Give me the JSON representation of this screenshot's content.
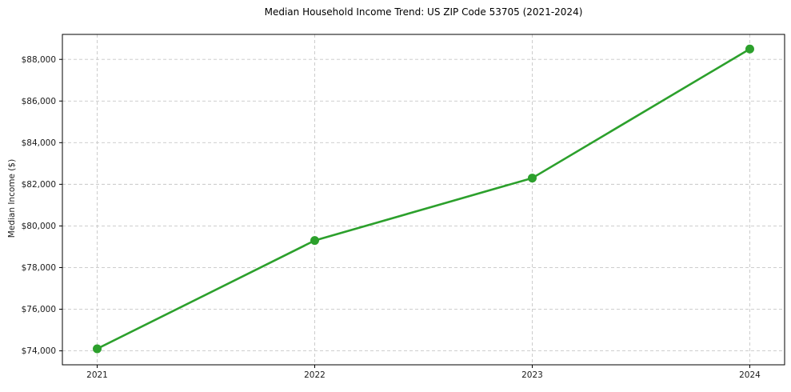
{
  "figure": {
    "background": "#ffffff"
  },
  "chart_data": {
    "type": "line",
    "title": "Median Household Income Trend: US ZIP Code 53705 (2021-2024)",
    "xlabel": "",
    "ylabel": "Median Income ($)",
    "x": [
      2021,
      2022,
      2023,
      2024
    ],
    "x_tick_labels": [
      "2021",
      "2022",
      "2023",
      "2024"
    ],
    "series": [
      {
        "name": "Median Household Income",
        "values": [
          74100,
          79300,
          82300,
          88500
        ],
        "color": "#2ca02c",
        "marker": "circle"
      }
    ],
    "y_ticks": [
      74000,
      76000,
      78000,
      80000,
      82000,
      84000,
      86000,
      88000
    ],
    "y_tick_labels": [
      "$74,000",
      "$76,000",
      "$78,000",
      "$80,000",
      "$82,000",
      "$84,000",
      "$86,000",
      "$88,000"
    ],
    "xlim": [
      2020.84,
      2024.16
    ],
    "ylim": [
      73330,
      89200
    ],
    "grid": true,
    "grid_style": "dashed",
    "grid_color": "#c7c7c7",
    "axis_color": "#000000",
    "tick_label_color": "#1a1a1a",
    "line_width": 2.6,
    "marker_radius": 5.5,
    "legend": "none"
  }
}
